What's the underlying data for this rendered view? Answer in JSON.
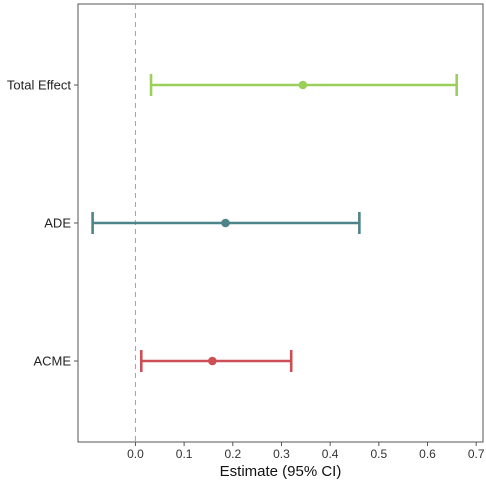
{
  "chart_data": {
    "type": "errorbar",
    "title": "",
    "xlabel": "Estimate (95% CI)",
    "ylabel": "",
    "xlim": [
      -0.118,
      0.714
    ],
    "xticks": [
      0.0,
      0.1,
      0.2,
      0.3,
      0.4,
      0.5,
      0.6,
      0.7
    ],
    "xtick_labels": [
      "0.0",
      "0.1",
      "0.2",
      "0.3",
      "0.4",
      "0.5",
      "0.6",
      "0.7"
    ],
    "reference_line": {
      "x": 0,
      "style": "dashed"
    },
    "grid": false,
    "categories": [
      "ACME",
      "ADE",
      "Total Effect"
    ],
    "points": [
      {
        "label": "Total Effect",
        "estimate": 0.344,
        "lower": 0.032,
        "upper": 0.66,
        "color": "#9ccf59"
      },
      {
        "label": "ADE",
        "estimate": 0.185,
        "lower": -0.088,
        "upper": 0.46,
        "color": "#4d8489"
      },
      {
        "label": "ACME",
        "estimate": 0.158,
        "lower": 0.012,
        "upper": 0.32,
        "color": "#cc4f55"
      }
    ]
  }
}
